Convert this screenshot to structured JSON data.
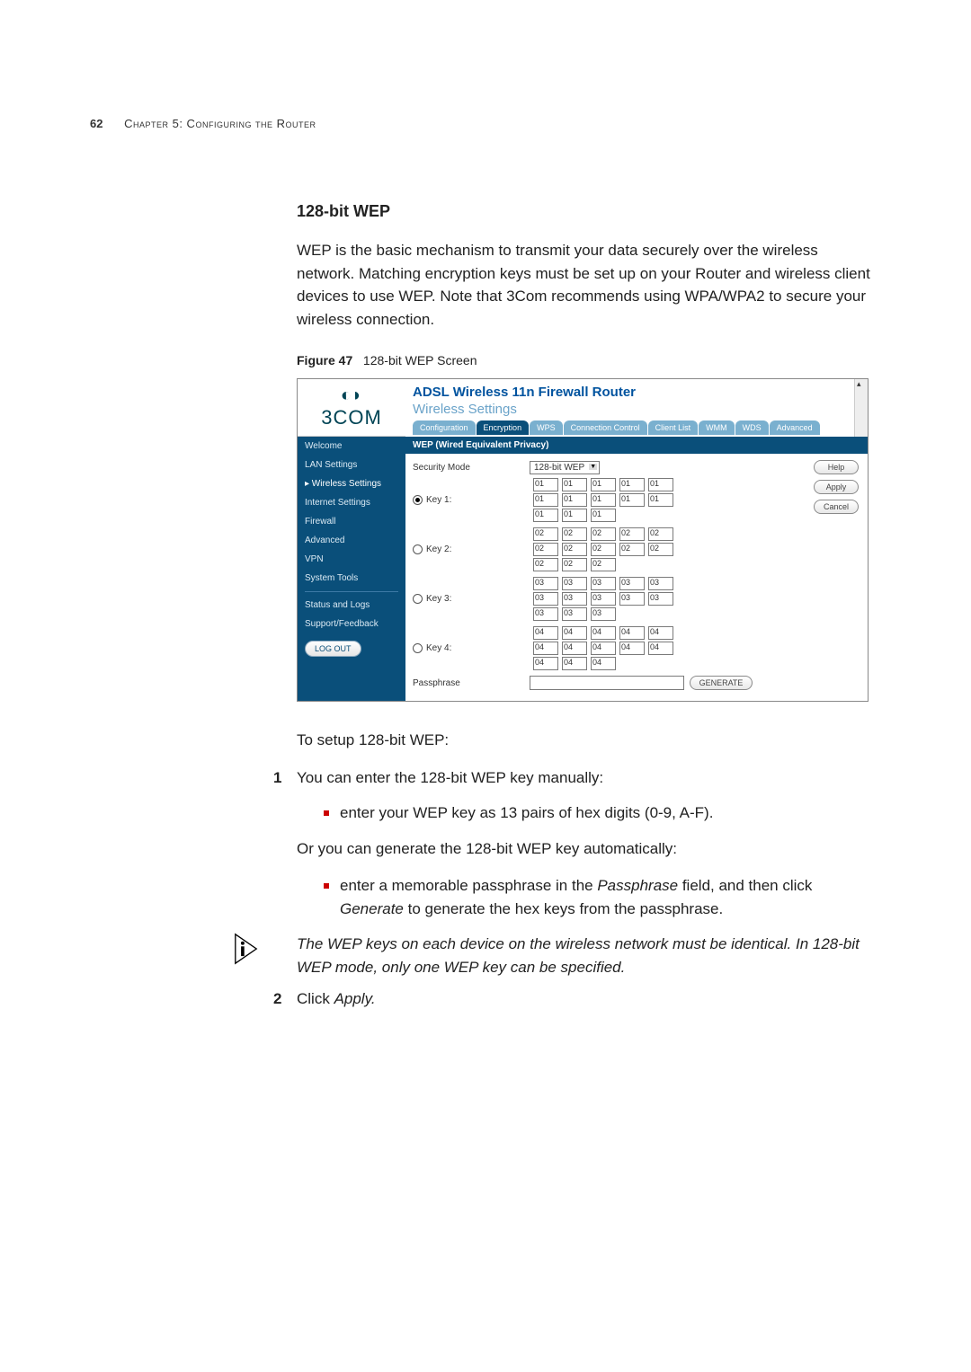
{
  "page": {
    "number": "62",
    "chapter_label": "Chapter 5: Configuring the Router"
  },
  "section": {
    "title": "128-bit WEP",
    "intro": "WEP is the basic mechanism to transmit your data securely over the wireless network. Matching encryption keys must be set up on your Router and wireless client devices to use WEP. Note that 3Com recommends using WPA/WPA2 to secure your wireless connection.",
    "figure_label": "Figure 47",
    "figure_caption": "128-bit WEP Screen"
  },
  "screenshot": {
    "logo_brand": "3COM",
    "router_title": "ADSL Wireless 11n Firewall Router",
    "subsection_title": "Wireless Settings",
    "tabs": [
      "Configuration",
      "Encryption",
      "WPS",
      "Connection Control",
      "Client List",
      "WMM",
      "WDS",
      "Advanced"
    ],
    "active_tab_index": 1,
    "sidebar": {
      "items": [
        "Welcome",
        "LAN Settings",
        "Wireless Settings",
        "Internet Settings",
        "Firewall",
        "Advanced",
        "VPN",
        "System Tools"
      ],
      "selected_index": 2,
      "group2": [
        "Status and Logs",
        "Support/Feedback"
      ],
      "logout": "LOG OUT"
    },
    "panel": {
      "header": "WEP (Wired Equivalent Privacy)",
      "security_mode_label": "Security Mode",
      "security_mode_value": "128-bit WEP",
      "keys": [
        {
          "label": "Key 1:",
          "checked": true,
          "val": "01"
        },
        {
          "label": "Key 2:",
          "checked": false,
          "val": "02"
        },
        {
          "label": "Key 3:",
          "checked": false,
          "val": "03"
        },
        {
          "label": "Key 4:",
          "checked": false,
          "val": "04"
        }
      ],
      "passphrase_label": "Passphrase",
      "generate_btn": "GENERATE",
      "help_btn": "Help",
      "apply_btn": "Apply",
      "cancel_btn": "Cancel"
    }
  },
  "body": {
    "setup_line": "To setup 128-bit WEP:",
    "step1": "You can enter the 128-bit WEP key manually:",
    "step1_bullet": "enter your WEP key as 13 pairs of hex digits (0-9, A-F).",
    "or_line": "Or you can generate the 128-bit WEP key automatically:",
    "auto_bullet_pre": "enter a memorable passphrase in the ",
    "auto_bullet_ital": "Passphrase",
    "auto_bullet_mid": " field, and then click ",
    "auto_bullet_ital2": "Generate",
    "auto_bullet_post": " to generate the hex keys from the passphrase.",
    "note": "The WEP keys on each device on the wireless network must be identical. In 128-bit WEP mode, only one WEP key can be specified.",
    "step2_pre": "Click ",
    "step2_ital": "Apply."
  },
  "colors": {
    "brand_blue": "#0a4f7a",
    "tab_blue": "#7ab0cf",
    "bullet_red": "#c00"
  }
}
